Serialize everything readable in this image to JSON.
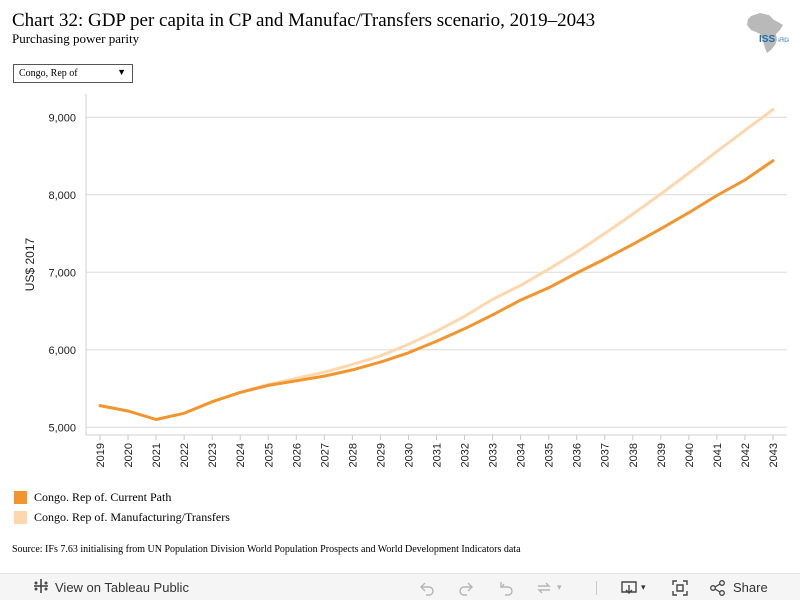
{
  "header": {
    "title": "Chart 32: GDP per capita in CP and Manufac/Transfers scenario, 2019–2043",
    "subtitle": "Purchasing power parity"
  },
  "logo": {
    "text_main": "ISS",
    "text_suffix": "AFRICA",
    "icon": "africa-map-icon"
  },
  "filter": {
    "selected": "Congo, Rep of",
    "icon": "dropdown-caret-icon"
  },
  "chart_data": {
    "type": "line",
    "x": [
      "2019",
      "2020",
      "2021",
      "2022",
      "2023",
      "2024",
      "2025",
      "2026",
      "2027",
      "2028",
      "2029",
      "2030",
      "2031",
      "2032",
      "2033",
      "2034",
      "2035",
      "2036",
      "2037",
      "2038",
      "2039",
      "2040",
      "2041",
      "2042",
      "2043"
    ],
    "ylabel": "US$ 2017",
    "ylim": [
      4900,
      9300
    ],
    "yticks": [
      5000,
      6000,
      7000,
      8000,
      9000
    ],
    "ytick_labels": [
      "5,000",
      "6,000",
      "7,000",
      "8,000",
      "9,000"
    ],
    "grid": "horizontal",
    "legend_position": "bottom-left",
    "series": [
      {
        "name": "Congo. Rep of. Current Path",
        "color": "#f2952e",
        "values": [
          5280,
          5210,
          5100,
          5180,
          5330,
          5450,
          5540,
          5600,
          5660,
          5740,
          5840,
          5960,
          6110,
          6270,
          6450,
          6640,
          6800,
          6990,
          7170,
          7360,
          7560,
          7770,
          7990,
          8190,
          8440
        ]
      },
      {
        "name": "Congo. Rep of. Manufacturing/Transfers",
        "color": "#fdd7ae",
        "values": [
          5280,
          5210,
          5100,
          5180,
          5330,
          5450,
          5550,
          5630,
          5710,
          5810,
          5920,
          6070,
          6240,
          6430,
          6650,
          6830,
          7040,
          7260,
          7500,
          7750,
          8010,
          8280,
          8560,
          8830,
          9100
        ]
      }
    ]
  },
  "source": "Source: IFs 7.63 initialising from UN Population Division World Population Prospects and World Development Indicators data",
  "toolbar": {
    "view_label": "View on Tableau Public",
    "share_label": "Share",
    "icons": [
      "tableau-logo-icon",
      "undo-icon",
      "redo-icon",
      "revert-icon",
      "refresh-icon",
      "download-icon",
      "fullscreen-icon",
      "share-icon"
    ]
  }
}
